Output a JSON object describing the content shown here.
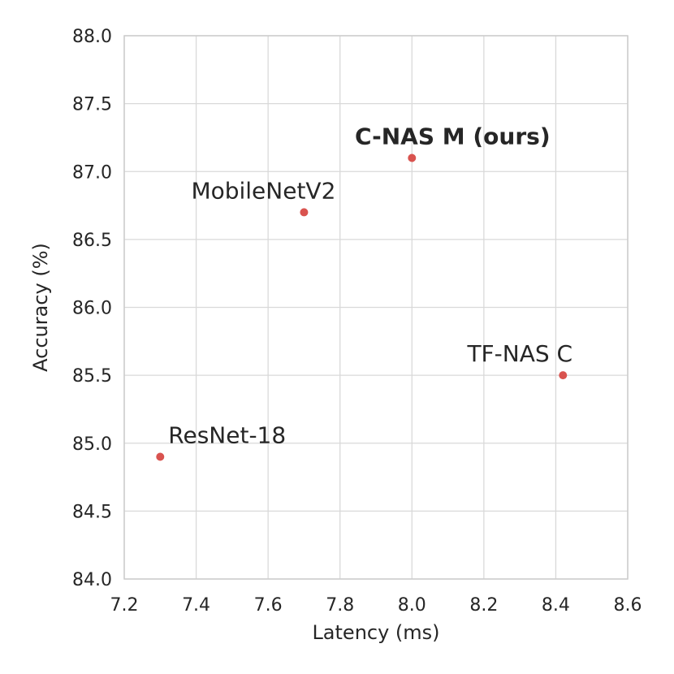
{
  "chart_data": {
    "type": "scatter",
    "title": "",
    "xlabel": "Latency (ms)",
    "ylabel": "Accuracy (%)",
    "xlim": [
      7.2,
      8.6
    ],
    "ylim": [
      84.0,
      88.0
    ],
    "xticks": [
      "7.2",
      "7.4",
      "7.6",
      "7.8",
      "8.0",
      "8.2",
      "8.4",
      "8.6"
    ],
    "yticks": [
      "84.0",
      "84.5",
      "85.0",
      "85.5",
      "86.0",
      "86.5",
      "87.0",
      "87.5",
      "88.0"
    ],
    "grid": true,
    "legend": "none",
    "point_color": "#d9534f",
    "points": [
      {
        "label": "ResNet-18",
        "x": 7.3,
        "y": 84.9,
        "bold": false
      },
      {
        "label": "MobileNetV2",
        "x": 7.7,
        "y": 86.7,
        "bold": false
      },
      {
        "label": "C-NAS M (ours)",
        "x": 8.0,
        "y": 87.1,
        "bold": true
      },
      {
        "label": "TF-NAS C",
        "x": 8.42,
        "y": 85.5,
        "bold": false
      }
    ]
  }
}
